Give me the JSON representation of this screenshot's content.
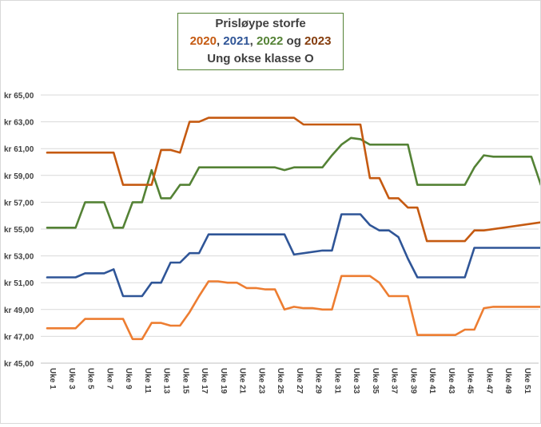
{
  "chart_data": {
    "type": "line",
    "title": {
      "line1": "Prisløype storfe",
      "line2": {
        "y2020": "2020",
        "sep1": ", ",
        "y2021": "2021",
        "sep2": ", ",
        "y2022": "2022",
        "sep3": " og ",
        "y2023": "2023"
      },
      "line3": "Ung okse klasse O"
    },
    "ylim": [
      45,
      65
    ],
    "y_ticks": [
      {
        "value": 45,
        "label": "kr 45,00"
      },
      {
        "value": 47,
        "label": "kr 47,00"
      },
      {
        "value": 49,
        "label": "kr 49,00"
      },
      {
        "value": 51,
        "label": "kr 51,00"
      },
      {
        "value": 53,
        "label": "kr 53,00"
      },
      {
        "value": 55,
        "label": "kr 55,00"
      },
      {
        "value": 57,
        "label": "kr 57,00"
      },
      {
        "value": 59,
        "label": "kr 59,00"
      },
      {
        "value": 61,
        "label": "kr 61,00"
      },
      {
        "value": 63,
        "label": "kr 63,00"
      },
      {
        "value": 65,
        "label": "kr 65,00"
      }
    ],
    "x_tick_labels": [
      "Uke 1",
      "Uke 3",
      "Uke 5",
      "Uke 7",
      "Uke 9",
      "Uke 11",
      "Uke 13",
      "Uke 15",
      "Uke 17",
      "Uke 19",
      "Uke 21",
      "Uke 23",
      "Uke 25",
      "Uke 27",
      "Uke 29",
      "Uke 31",
      "Uke 33",
      "Uke 35",
      "Uke 37",
      "Uke 39",
      "Uke 41",
      "Uke 43",
      "Uke 45",
      "Uke 47",
      "Uke 49",
      "Uke 51"
    ],
    "x_tick_weeks": [
      1,
      3,
      5,
      7,
      9,
      11,
      13,
      15,
      17,
      19,
      21,
      23,
      25,
      27,
      29,
      31,
      33,
      35,
      37,
      39,
      41,
      43,
      45,
      47,
      49,
      51
    ],
    "grid": true,
    "series": [
      {
        "name": "2020",
        "color": "#ed7d31",
        "x": [
          1,
          4,
          5,
          8,
          9,
          10,
          11,
          12,
          13,
          14,
          15,
          16,
          17,
          18,
          19,
          20,
          21,
          22,
          23,
          24,
          25,
          26,
          27,
          28,
          29,
          30,
          31,
          32,
          33,
          34,
          35,
          36,
          37,
          38,
          39,
          40,
          41,
          44,
          45,
          46,
          47,
          48,
          53
        ],
        "values": [
          47.6,
          47.6,
          48.3,
          48.3,
          48.3,
          46.8,
          46.8,
          48.0,
          48.0,
          47.8,
          47.8,
          48.8,
          50.0,
          51.1,
          51.1,
          51.0,
          51.0,
          50.6,
          50.6,
          50.5,
          50.5,
          49.0,
          49.2,
          49.1,
          49.1,
          49.0,
          49.0,
          51.5,
          51.5,
          51.5,
          51.5,
          51.0,
          50.0,
          50.0,
          50.0,
          47.1,
          47.1,
          47.1,
          47.5,
          47.5,
          49.1,
          49.2,
          49.2
        ]
      },
      {
        "name": "2021",
        "color": "#2f5597",
        "x": [
          1,
          4,
          5,
          7,
          8,
          9,
          11,
          12,
          13,
          14,
          15,
          16,
          17,
          18,
          26,
          27,
          30,
          31,
          32,
          34,
          35,
          36,
          37,
          38,
          39,
          40,
          45,
          46,
          53
        ],
        "values": [
          51.4,
          51.4,
          51.7,
          51.7,
          52.0,
          50.0,
          50.0,
          51.0,
          51.0,
          52.5,
          52.5,
          53.2,
          53.2,
          54.6,
          54.6,
          53.1,
          53.4,
          53.4,
          56.1,
          56.1,
          55.3,
          54.9,
          54.9,
          54.4,
          52.8,
          51.4,
          51.4,
          53.6,
          53.6
        ]
      },
      {
        "name": "2022",
        "color": "#548235",
        "x": [
          1,
          4,
          5,
          7,
          8,
          9,
          10,
          11,
          12,
          13,
          14,
          15,
          16,
          17,
          18,
          25,
          26,
          27,
          30,
          31,
          32,
          33,
          34,
          35,
          36,
          39,
          40,
          45,
          46,
          47,
          48,
          52,
          53
        ],
        "values": [
          55.1,
          55.1,
          57.0,
          57.0,
          55.1,
          55.1,
          57.0,
          57.0,
          59.4,
          57.3,
          57.3,
          58.3,
          58.3,
          59.6,
          59.6,
          59.6,
          59.4,
          59.6,
          59.6,
          60.5,
          61.3,
          61.8,
          61.7,
          61.3,
          61.3,
          61.3,
          58.3,
          58.3,
          59.6,
          60.5,
          60.4,
          60.4,
          58.3
        ]
      },
      {
        "name": "2023",
        "color": "#c55a11",
        "x": [
          1,
          8,
          9,
          12,
          13,
          14,
          15,
          16,
          17,
          18,
          27,
          28,
          34,
          35,
          36,
          37,
          38,
          39,
          40,
          41,
          44,
          45,
          46,
          47,
          53
        ],
        "values": [
          60.7,
          60.7,
          58.3,
          58.3,
          60.9,
          60.9,
          60.7,
          63.0,
          63.0,
          63.3,
          63.3,
          62.8,
          62.8,
          58.8,
          58.8,
          57.3,
          57.3,
          56.6,
          56.6,
          54.1,
          54.1,
          54.1,
          54.9,
          54.9,
          55.5
        ]
      }
    ]
  }
}
